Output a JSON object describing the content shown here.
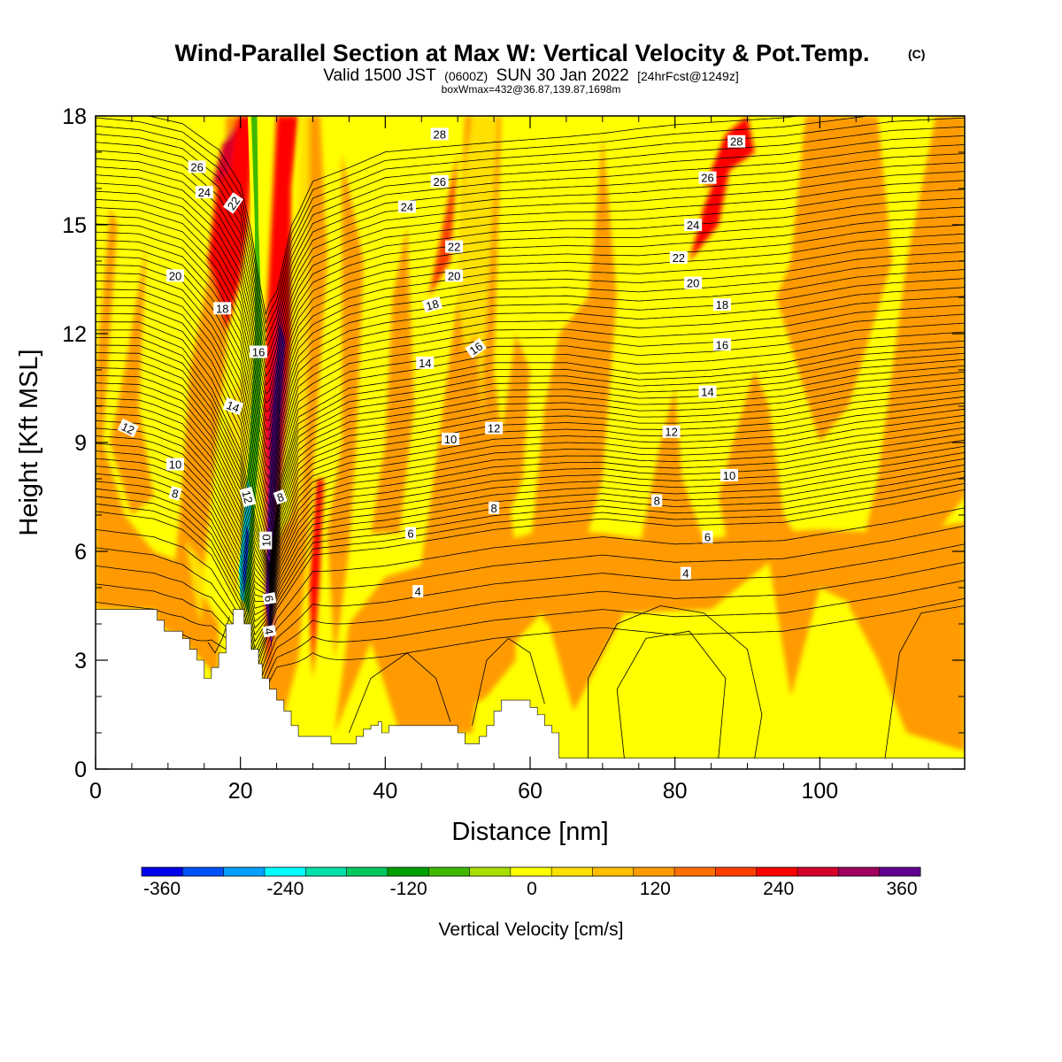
{
  "header": {
    "title_main": "Wind-Parallel Section at Max W: Vertical Velocity & Pot.Temp.",
    "title_copyright": "(C)",
    "valid_prefix": "Valid 1500 JST",
    "valid_utc": "(0600Z)",
    "valid_date": "SUN 30 Jan 2022",
    "valid_forecast": "[24hrFcst@1249z]",
    "box_info": "boxWmax=432@36.87,139.87,1698m"
  },
  "chart_data": {
    "type": "heatmap",
    "xlabel": "Distance [nm]",
    "ylabel": "Height [Kft MSL]",
    "xlim": [
      0,
      120
    ],
    "ylim": [
      0,
      18
    ],
    "xticks": [
      0,
      20,
      40,
      60,
      80,
      100
    ],
    "yticks": [
      0,
      3,
      6,
      9,
      12,
      15,
      18
    ],
    "colorbar": {
      "title": "Vertical Velocity [cm/s]",
      "ticks": [
        -360,
        -240,
        -120,
        0,
        120,
        240,
        360
      ],
      "levels": [
        -390,
        -360,
        -330,
        -300,
        -270,
        -240,
        -210,
        -180,
        -150,
        -120,
        -90,
        -60,
        -30,
        0,
        30,
        60,
        90,
        120,
        150,
        180,
        210,
        240,
        270,
        300,
        330,
        360,
        390
      ],
      "colors": [
        "#0000ee",
        "#0050f8",
        "#00a0ff",
        "#00ffff",
        "#00e0a8",
        "#00c860",
        "#00a000",
        "#40b800",
        "#a8de00",
        "#ffff00",
        "#ffe000",
        "#ffbe00",
        "#ff9a00",
        "#ff7000",
        "#ff4000",
        "#ff0000",
        "#d4002a",
        "#a00060",
        "#600090"
      ]
    },
    "terrain_kft": [
      [
        0,
        4.4
      ],
      [
        8.5,
        4.4
      ],
      [
        8.5,
        4.1
      ],
      [
        9.5,
        4.1
      ],
      [
        9.5,
        3.8
      ],
      [
        12,
        3.8
      ],
      [
        12,
        3.6
      ],
      [
        13,
        3.6
      ],
      [
        13,
        3.3
      ],
      [
        14,
        3.3
      ],
      [
        14,
        3.0
      ],
      [
        15,
        3.0
      ],
      [
        15,
        2.5
      ],
      [
        16,
        2.5
      ],
      [
        16,
        2.8
      ],
      [
        17,
        2.8
      ],
      [
        17,
        3.2
      ],
      [
        18,
        3.2
      ],
      [
        18,
        4.0
      ],
      [
        19,
        4.0
      ],
      [
        19,
        4.4
      ],
      [
        20.5,
        4.4
      ],
      [
        20.5,
        4.0
      ],
      [
        21.5,
        4.0
      ],
      [
        21.5,
        3.3
      ],
      [
        22.5,
        3.3
      ],
      [
        22.5,
        2.9
      ],
      [
        23,
        2.9
      ],
      [
        23,
        2.5
      ],
      [
        24,
        2.5
      ],
      [
        24,
        2.2
      ],
      [
        25,
        2.2
      ],
      [
        25,
        1.9
      ],
      [
        26,
        1.9
      ],
      [
        26,
        1.6
      ],
      [
        27,
        1.6
      ],
      [
        27,
        1.2
      ],
      [
        28,
        1.2
      ],
      [
        28,
        0.9
      ],
      [
        32.5,
        0.9
      ],
      [
        32.5,
        0.7
      ],
      [
        36,
        0.7
      ],
      [
        36,
        0.9
      ],
      [
        37,
        0.9
      ],
      [
        37,
        1.1
      ],
      [
        38,
        1.1
      ],
      [
        38,
        1.2
      ],
      [
        39,
        1.2
      ],
      [
        39,
        1.3
      ],
      [
        39.5,
        1.3
      ],
      [
        39.5,
        1.0
      ],
      [
        40.5,
        1.0
      ],
      [
        40.5,
        1.2
      ],
      [
        50,
        1.2
      ],
      [
        50,
        1.0
      ],
      [
        51,
        1.0
      ],
      [
        51,
        0.7
      ],
      [
        53,
        0.7
      ],
      [
        53,
        0.9
      ],
      [
        54,
        0.9
      ],
      [
        54,
        1.2
      ],
      [
        55,
        1.2
      ],
      [
        55,
        1.6
      ],
      [
        56,
        1.6
      ],
      [
        56,
        1.9
      ],
      [
        60,
        1.9
      ],
      [
        60,
        1.7
      ],
      [
        61,
        1.7
      ],
      [
        61,
        1.5
      ],
      [
        62,
        1.5
      ],
      [
        62,
        1.2
      ],
      [
        63,
        1.2
      ],
      [
        63,
        1.0
      ],
      [
        64,
        1.0
      ],
      [
        64,
        0.3
      ],
      [
        120,
        0.3
      ]
    ],
    "theta_labels": [
      {
        "text": "26",
        "x": 14.0,
        "y": 16.6,
        "rot": 0
      },
      {
        "text": "24",
        "x": 15.0,
        "y": 15.9,
        "rot": 0
      },
      {
        "text": "22",
        "x": 19.0,
        "y": 15.6,
        "rot": -55
      },
      {
        "text": "20",
        "x": 11.0,
        "y": 13.6,
        "rot": 0
      },
      {
        "text": "18",
        "x": 17.5,
        "y": 12.7,
        "rot": 0
      },
      {
        "text": "16",
        "x": 22.5,
        "y": 11.5,
        "rot": 0
      },
      {
        "text": "14",
        "x": 19.0,
        "y": 10.0,
        "rot": 20
      },
      {
        "text": "12",
        "x": 4.5,
        "y": 9.4,
        "rot": 25
      },
      {
        "text": "10",
        "x": 11.0,
        "y": 8.4,
        "rot": 0
      },
      {
        "text": "8",
        "x": 11.0,
        "y": 7.6,
        "rot": 15
      },
      {
        "text": "12",
        "x": 21.0,
        "y": 7.5,
        "rot": 75
      },
      {
        "text": "8",
        "x": 25.5,
        "y": 7.5,
        "rot": -20
      },
      {
        "text": "10",
        "x": 23.5,
        "y": 6.3,
        "rot": -90
      },
      {
        "text": "6",
        "x": 24.0,
        "y": 4.7,
        "rot": 80
      },
      {
        "text": "4",
        "x": 24.0,
        "y": 3.8,
        "rot": 80
      },
      {
        "text": "28",
        "x": 47.5,
        "y": 17.5,
        "rot": 0
      },
      {
        "text": "26",
        "x": 47.5,
        "y": 16.2,
        "rot": 0
      },
      {
        "text": "24",
        "x": 43.0,
        "y": 15.5,
        "rot": 0
      },
      {
        "text": "22",
        "x": 49.5,
        "y": 14.4,
        "rot": 0
      },
      {
        "text": "20",
        "x": 49.5,
        "y": 13.6,
        "rot": 0
      },
      {
        "text": "18",
        "x": 46.5,
        "y": 12.8,
        "rot": -15
      },
      {
        "text": "16",
        "x": 52.5,
        "y": 11.6,
        "rot": -35
      },
      {
        "text": "14",
        "x": 45.5,
        "y": 11.2,
        "rot": 0
      },
      {
        "text": "12",
        "x": 55.0,
        "y": 9.4,
        "rot": 0
      },
      {
        "text": "10",
        "x": 49.0,
        "y": 9.1,
        "rot": 0
      },
      {
        "text": "8",
        "x": 55.0,
        "y": 7.2,
        "rot": 0
      },
      {
        "text": "6",
        "x": 43.5,
        "y": 6.5,
        "rot": 0
      },
      {
        "text": "4",
        "x": 44.5,
        "y": 4.9,
        "rot": 0
      },
      {
        "text": "28",
        "x": 88.5,
        "y": 17.3,
        "rot": 0
      },
      {
        "text": "26",
        "x": 84.5,
        "y": 16.3,
        "rot": 0
      },
      {
        "text": "24",
        "x": 82.5,
        "y": 15.0,
        "rot": 0
      },
      {
        "text": "22",
        "x": 80.5,
        "y": 14.1,
        "rot": 0
      },
      {
        "text": "20",
        "x": 82.5,
        "y": 13.4,
        "rot": 0
      },
      {
        "text": "18",
        "x": 86.5,
        "y": 12.8,
        "rot": 0
      },
      {
        "text": "16",
        "x": 86.5,
        "y": 11.7,
        "rot": 0
      },
      {
        "text": "14",
        "x": 84.5,
        "y": 10.4,
        "rot": 0
      },
      {
        "text": "12",
        "x": 79.5,
        "y": 9.3,
        "rot": 0
      },
      {
        "text": "10",
        "x": 87.5,
        "y": 8.1,
        "rot": 0
      },
      {
        "text": "8",
        "x": 77.5,
        "y": 7.4,
        "rot": 0
      },
      {
        "text": "6",
        "x": 84.5,
        "y": 6.4,
        "rot": 0
      },
      {
        "text": "4",
        "x": 81.5,
        "y": 5.4,
        "rot": 0
      }
    ]
  }
}
